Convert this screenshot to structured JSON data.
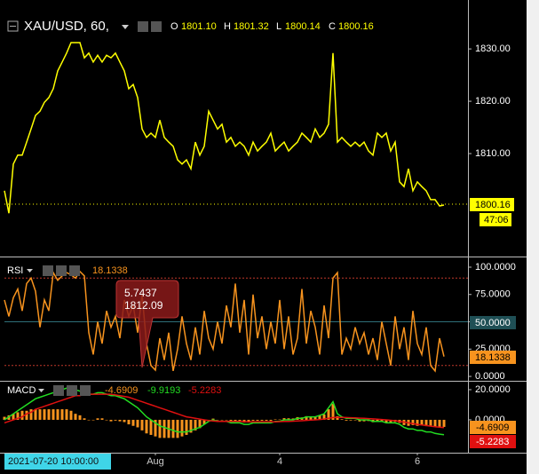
{
  "header": {
    "symbol": "XAU/USD, 60,",
    "ohlc": [
      {
        "key": "O",
        "text": "1801.10"
      },
      {
        "key": "H",
        "text": "1801.32"
      },
      {
        "key": "L",
        "text": "1800.14"
      },
      {
        "key": "C",
        "text": "1800.16"
      }
    ],
    "last_price": "1800.16",
    "countdown": "47:06"
  },
  "crosshair": {
    "time": "2021-07-20 10:00:00",
    "rsi": "5.7437",
    "price": "1812.09"
  },
  "chart_data": [
    {
      "type": "line",
      "color": "#ffff00",
      "xlim": [
        0,
        104.4
      ],
      "ylim": [
        1790.5,
        1838.5
      ],
      "yticks": [
        {
          "value": 1810,
          "label": "1810.00"
        },
        {
          "value": 1820,
          "label": "1820.00"
        },
        {
          "value": 1830,
          "label": "1830.00"
        }
      ],
      "values": [
        1802.9,
        1798.6,
        1808.0,
        1809.7,
        1809.7,
        1812.2,
        1814.7,
        1817.3,
        1818.1,
        1819.8,
        1820.7,
        1822.4,
        1825.8,
        1827.5,
        1829.2,
        1831.2,
        1831.2,
        1831.2,
        1828.3,
        1829.2,
        1827.5,
        1828.8,
        1827.5,
        1828.8,
        1828.3,
        1829.2,
        1827.5,
        1825.8,
        1822.4,
        1823.2,
        1820.7,
        1814.7,
        1813.1,
        1813.9,
        1813.1,
        1816.4,
        1813.1,
        1812.2,
        1811.4,
        1808.8,
        1808.0,
        1808.8,
        1807.1,
        1812.2,
        1809.7,
        1811.4,
        1818.1,
        1816.4,
        1814.7,
        1815.6,
        1812.2,
        1813.1,
        1811.4,
        1812.2,
        1811.4,
        1809.7,
        1812.2,
        1810.5,
        1811.4,
        1812.2,
        1813.9,
        1810.5,
        1811.4,
        1812.2,
        1810.5,
        1811.4,
        1812.2,
        1813.9,
        1813.1,
        1812.2,
        1814.7,
        1813.1,
        1813.9,
        1815.6,
        1829.2,
        1812.2,
        1813.1,
        1812.2,
        1811.4,
        1812.2,
        1811.4,
        1812.2,
        1810.5,
        1809.7,
        1813.9,
        1813.1,
        1813.9,
        1810.5,
        1812.2,
        1804.6,
        1803.7,
        1807.1,
        1802.9,
        1804.6,
        1803.7,
        1802.9,
        1801.2,
        1801.2,
        1800.0,
        1800.16
      ]
    },
    {
      "type": "line",
      "name": "RSI",
      "color": "#f7931e",
      "value_label": "18.1338",
      "xlim": [
        0,
        104.4
      ],
      "ylim": [
        -3.2,
        107.3
      ],
      "levels": [
        90,
        10
      ],
      "midline": 50,
      "yticks": [
        {
          "value": 0,
          "label": "0.0000"
        },
        {
          "value": 25,
          "label": "25.0000"
        },
        {
          "value": 50,
          "label": "50.0000"
        },
        {
          "value": 75,
          "label": "75.0000"
        },
        {
          "value": 100,
          "label": "100.0000"
        }
      ],
      "values": [
        70,
        55,
        72,
        80,
        60,
        85,
        90,
        78,
        45,
        70,
        60,
        95,
        88,
        92,
        95,
        93,
        90,
        96,
        92,
        40,
        20,
        50,
        30,
        60,
        45,
        55,
        35,
        70,
        55,
        65,
        40,
        75,
        30,
        10,
        5.7437,
        35,
        15,
        40,
        5,
        25,
        55,
        30,
        15,
        45,
        20,
        60,
        35,
        25,
        50,
        30,
        65,
        45,
        85,
        40,
        70,
        20,
        75,
        35,
        55,
        25,
        50,
        30,
        70,
        25,
        55,
        20,
        35,
        80,
        30,
        60,
        45,
        20,
        65,
        35,
        90,
        95,
        20,
        35,
        25,
        45,
        30,
        40,
        20,
        35,
        15,
        50,
        30,
        10,
        55,
        25,
        45,
        15,
        60,
        30,
        20,
        45,
        10,
        5,
        35,
        18.1338
      ]
    },
    {
      "type": "macd",
      "name": "MACD",
      "xlim": [
        0,
        104.4
      ],
      "ylim": [
        -21.8,
        24.7
      ],
      "yticks": [
        {
          "value": 0,
          "label": "0.0000"
        },
        {
          "value": 20,
          "label": "20.0000"
        }
      ],
      "xticks": [
        {
          "value": 34,
          "label": "Aug"
        },
        {
          "value": 62,
          "label": "4"
        },
        {
          "value": 93,
          "label": "6"
        }
      ],
      "series": [
        {
          "type": "bar",
          "color": "#f7931e",
          "value_label": "-4.6909",
          "values": [
            2,
            3,
            4,
            5,
            6,
            6,
            7,
            7,
            7,
            7,
            7,
            7,
            7,
            7,
            7,
            6,
            4,
            3,
            1,
            0,
            0,
            1,
            1,
            0,
            -1,
            -0.5,
            -1,
            -1.5,
            -3,
            -4,
            -5,
            -7,
            -9,
            -10,
            -11,
            -12,
            -12,
            -12,
            -12,
            -12,
            -11,
            -10,
            -8.5,
            -7,
            -5.5,
            -3,
            -0.5,
            0.8,
            0,
            0,
            0,
            -1,
            -1,
            -1,
            -1.8,
            -1.7,
            -0.6,
            -0.6,
            -0.6,
            -0.6,
            -0.7,
            0.3,
            0.2,
            1.1,
            1,
            0.9,
            1.8,
            1.6,
            2.4,
            2.2,
            2,
            2.8,
            3.5,
            7,
            10.5,
            2.4,
            0.4,
            -0.5,
            -0.4,
            -0.3,
            -1.1,
            -1,
            -0.8,
            -1.6,
            -1.4,
            -1.2,
            -2,
            -1.7,
            -1.4,
            -2,
            -3.5,
            -4,
            -3.5,
            -4,
            -3.6,
            -4.2,
            -3.8,
            -4.4,
            -4.6,
            -4.6909
          ]
        },
        {
          "type": "line",
          "color": "#22dd22",
          "value_label": "-9.9193",
          "values": [
            0,
            2,
            4,
            6,
            8,
            10,
            12,
            14,
            15,
            16,
            17,
            18,
            19,
            20,
            21,
            21,
            20,
            19,
            18,
            17,
            17,
            18,
            18,
            17,
            16,
            16,
            15,
            14,
            12,
            10,
            8,
            5,
            2,
            0,
            -2,
            -4,
            -5,
            -6,
            -7,
            -8,
            -8,
            -8,
            -7,
            -6,
            -5,
            -3,
            -1,
            0,
            -1,
            -1,
            -1,
            -2,
            -2,
            -2,
            -3,
            -3,
            -2,
            -2,
            -2,
            -2,
            -2,
            -1,
            -1,
            0,
            0,
            0,
            1,
            1,
            2,
            2,
            2,
            3,
            4,
            8,
            12,
            4,
            2,
            1,
            1,
            1,
            0,
            0,
            0,
            -1,
            -1,
            -1,
            -2,
            -2,
            -2,
            -3,
            -5,
            -6,
            -6,
            -7,
            -7,
            -8,
            -8,
            -9,
            -9.5,
            -9.9193
          ]
        },
        {
          "type": "line",
          "color": "#e01010",
          "value_label": "-5.2283",
          "values": [
            -2,
            -1,
            0,
            1,
            2,
            4,
            5,
            7,
            8,
            9,
            10,
            11,
            12,
            13,
            14,
            15,
            16,
            16,
            17,
            17,
            17,
            17,
            17,
            17,
            17,
            16.5,
            16,
            15.5,
            15,
            14,
            13,
            12,
            11,
            10,
            9,
            8,
            7,
            6,
            5,
            4,
            3,
            2,
            1.5,
            1,
            0.5,
            0,
            -0.5,
            -0.8,
            -1,
            -1,
            -1,
            -1,
            -1,
            -1,
            -1.2,
            -1.3,
            -1.4,
            -1.4,
            -1.4,
            -1.4,
            -1.3,
            -1.3,
            -1.2,
            -1.1,
            -1,
            -0.9,
            -0.8,
            -0.6,
            -0.4,
            -0.2,
            0,
            0.2,
            0.5,
            1,
            1.5,
            1.6,
            1.6,
            1.5,
            1.4,
            1.3,
            1.1,
            1,
            0.8,
            0.6,
            0.4,
            0.2,
            0,
            -0.3,
            -0.6,
            -1,
            -1.5,
            -2,
            -2.5,
            -3,
            -3.4,
            -3.8,
            -4.2,
            -4.6,
            -4.9,
            -5.2283
          ]
        }
      ]
    }
  ]
}
